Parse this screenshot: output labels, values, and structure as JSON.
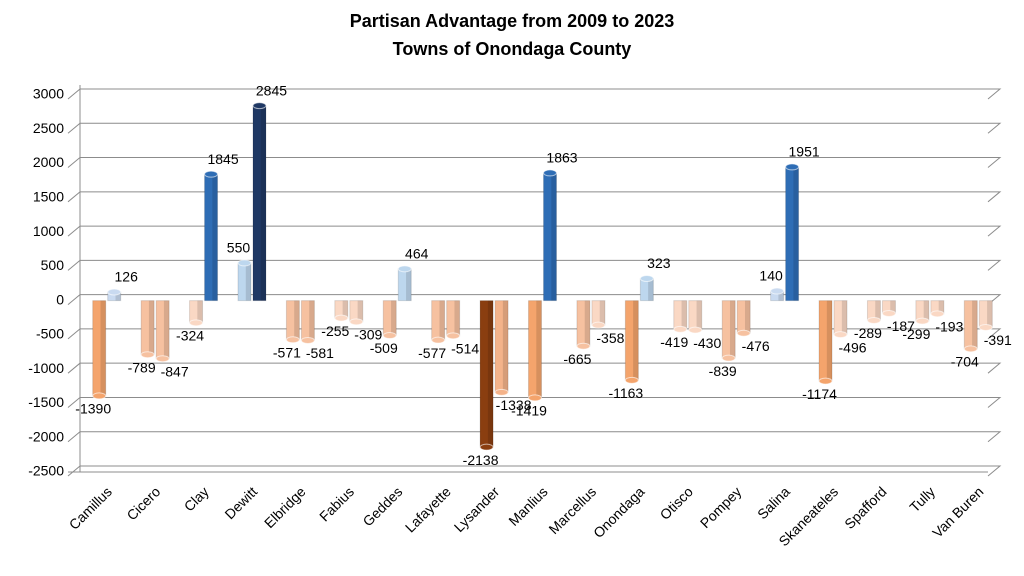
{
  "chart_data": {
    "type": "bar",
    "title": "Partisan Advantage from 2009 to 2023",
    "subtitle": "Towns of Onondaga County",
    "categories": [
      "Camillus",
      "Cicero",
      "Clay",
      "Dewitt",
      "Elbridge",
      "Fabius",
      "Geddes",
      "Lafayette",
      "Lysander",
      "Manlius",
      "Marcellus",
      "Onondaga",
      "Otisco",
      "Pompey",
      "Salina",
      "Skaneateles",
      "Spafford",
      "Tully",
      "Van Buren"
    ],
    "series": [
      {
        "values": [
          -1390,
          -789,
          -324,
          550,
          -571,
          -255,
          -509,
          -577,
          -2138,
          -1419,
          -665,
          -1163,
          -419,
          -839,
          140,
          -1174,
          -289,
          -299,
          -704
        ],
        "colors": [
          "#f4a46c",
          "#f6c1a0",
          "#fad8c4",
          "#bdd7ee",
          "#f6c1a0",
          "#fad8c4",
          "#f6c1a0",
          "#f6c1a0",
          "#8a3e10",
          "#f4a46c",
          "#f6c1a0",
          "#f4a46c",
          "#fad8c4",
          "#f6c1a0",
          "#c9daf0",
          "#f4a46c",
          "#fad8c4",
          "#fad8c4",
          "#f6c1a0"
        ]
      },
      {
        "values": [
          126,
          -847,
          1845,
          2845,
          -581,
          -309,
          464,
          -514,
          -1338,
          1863,
          -358,
          323,
          -430,
          -476,
          1951,
          -496,
          -187,
          -193,
          -391
        ],
        "colors": [
          "#c9daf0",
          "#f6c1a0",
          "#2e6db5",
          "#1f3864",
          "#f6c1a0",
          "#fad8c4",
          "#bdd7ee",
          "#f6c1a0",
          "#f4b38a",
          "#2e6db5",
          "#fad8c4",
          "#bdd7ee",
          "#fad8c4",
          "#f6c1a0",
          "#2e6db5",
          "#fad8c4",
          "#fad8c4",
          "#fad8c4",
          "#fad8c4"
        ]
      }
    ],
    "ylim": [
      -2500,
      3000
    ],
    "yticks": [
      -2500,
      -2000,
      -1500,
      -1000,
      -500,
      0,
      500,
      1000,
      1500,
      2000,
      2500,
      3000
    ],
    "grid": true
  }
}
